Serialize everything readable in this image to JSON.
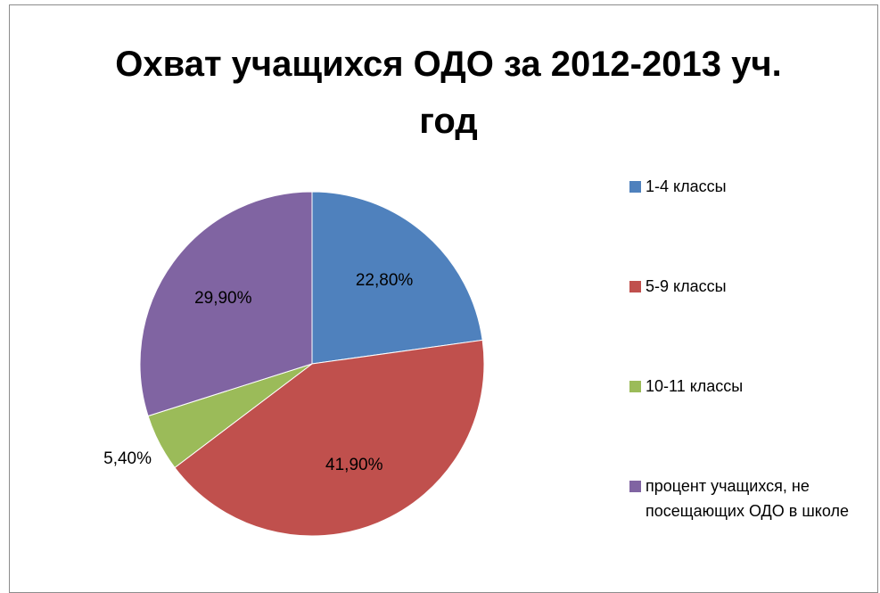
{
  "chart_data": {
    "type": "pie",
    "title": "Охват учащихся ОДО за 2012-2013 уч. год",
    "categories": [
      "1-4 классы",
      "5-9 классы",
      "10-11 классы",
      "процент учащихся, не посещающих ОДО в школе"
    ],
    "values": [
      22.8,
      41.9,
      5.4,
      29.9
    ],
    "value_labels": [
      "22,80%",
      "41,90%",
      "5,40%",
      "29,90%"
    ],
    "colors": [
      "#4f81bd",
      "#c0504d",
      "#9bbb59",
      "#8064a2"
    ],
    "legend": "right"
  }
}
